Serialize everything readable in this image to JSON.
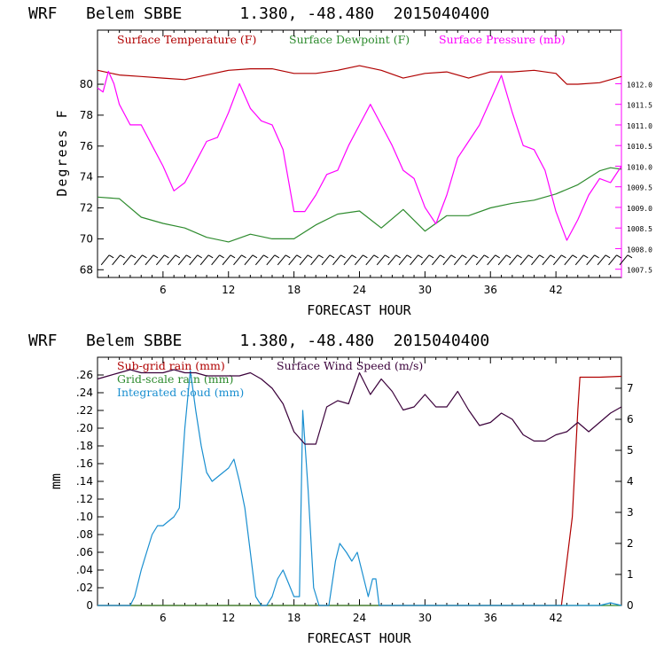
{
  "chart_data": [
    {
      "type": "line",
      "title": "WRF   Belem SBBE      1.380, -48.480  2015040400",
      "xlabel": "FORECAST HOUR",
      "ylabel": "Degrees F",
      "xlim": [
        0,
        48
      ],
      "ylim": [
        67.5,
        83.5
      ],
      "y2lim": [
        1007.3,
        1013.3
      ],
      "xticks": [
        6,
        12,
        18,
        24,
        30,
        36,
        42
      ],
      "yticks": [
        68,
        70,
        72,
        74,
        76,
        78,
        80
      ],
      "y2ticks": [
        1007.5,
        1008.0,
        1008.5,
        1009.0,
        1009.5,
        1010.0,
        1010.5,
        1011.0,
        1011.5,
        1012.0
      ],
      "xtick_labels": [
        "6",
        "12",
        "18",
        "24",
        "30",
        "36",
        "42"
      ],
      "ytick_labels": [
        "68",
        "70",
        "72",
        "74",
        "76",
        "78",
        "80"
      ],
      "y2tick_labels": [
        "1007.5",
        "1008.0",
        "1008.5",
        "1009.0",
        "1009.5",
        "1010.0",
        "1010.5",
        "1011.0",
        "1011.5",
        "1012.0"
      ],
      "legend": [
        {
          "label": "Surface Temperature (F)",
          "color": "#b00000"
        },
        {
          "label": "Surface Dewpoint (F)",
          "color": "#2e8b2e"
        },
        {
          "label": "Surface Pressure (mb)",
          "color": "#ff00ff"
        }
      ],
      "series": [
        {
          "name": "Surface Temperature (F)",
          "axis": "left",
          "color": "#b00000",
          "x": [
            0,
            2,
            4,
            6,
            8,
            10,
            12,
            14,
            16,
            18,
            20,
            22,
            24,
            26,
            28,
            30,
            32,
            34,
            36,
            38,
            40,
            42,
            43,
            44,
            46,
            48
          ],
          "y": [
            80.9,
            80.6,
            80.5,
            80.4,
            80.3,
            80.6,
            80.9,
            81.0,
            81.0,
            80.7,
            80.7,
            80.9,
            81.2,
            80.9,
            80.4,
            80.7,
            80.8,
            80.4,
            80.8,
            80.8,
            80.9,
            80.7,
            80.0,
            80.0,
            80.1,
            80.5
          ]
        },
        {
          "name": "Surface Dewpoint (F)",
          "axis": "left",
          "color": "#2e8b2e",
          "x": [
            0,
            2,
            4,
            6,
            8,
            10,
            12,
            14,
            16,
            18,
            20,
            22,
            24,
            26,
            28,
            30,
            32,
            34,
            36,
            38,
            40,
            42,
            44,
            46,
            47,
            48
          ],
          "y": [
            72.7,
            72.6,
            71.4,
            71.0,
            70.7,
            70.1,
            69.8,
            70.3,
            70.0,
            70.0,
            70.9,
            71.6,
            71.8,
            70.7,
            71.9,
            70.5,
            71.5,
            71.5,
            72.0,
            72.3,
            72.5,
            72.9,
            73.5,
            74.4,
            74.6,
            74.5
          ]
        },
        {
          "name": "Surface Pressure (mb)",
          "axis": "right",
          "color": "#ff00ff",
          "x": [
            0,
            0.5,
            1,
            1.5,
            2,
            3,
            4,
            5,
            6,
            7,
            8,
            9,
            10,
            11,
            12,
            13,
            14,
            15,
            16,
            17,
            18,
            19,
            20,
            21,
            22,
            23,
            24,
            25,
            26,
            27,
            28,
            29,
            30,
            31,
            32,
            33,
            34,
            35,
            36,
            37,
            38,
            39,
            40,
            41,
            42,
            43,
            44,
            45,
            46,
            47,
            48
          ],
          "y": [
            1011.9,
            1011.8,
            1012.3,
            1012.0,
            1011.5,
            1011.0,
            1011.0,
            1010.5,
            1010.0,
            1009.4,
            1009.6,
            1010.1,
            1010.6,
            1010.7,
            1011.3,
            1012.0,
            1011.4,
            1011.1,
            1011.0,
            1010.4,
            1008.9,
            1008.9,
            1009.3,
            1009.8,
            1009.9,
            1010.5,
            1011.0,
            1011.5,
            1011.0,
            1010.5,
            1009.9,
            1009.7,
            1009.0,
            1008.6,
            1009.3,
            1010.2,
            1010.6,
            1011.0,
            1011.6,
            1012.2,
            1011.3,
            1010.5,
            1010.4,
            1009.9,
            1008.9,
            1008.2,
            1008.7,
            1009.3,
            1009.7,
            1009.6,
            1010.0
          ]
        }
      ],
      "wind_barbs": {
        "count": 48,
        "from_x": 0.5,
        "to_x": 48
      }
    },
    {
      "type": "line",
      "title": "WRF   Belem SBBE      1.380, -48.480  2015040400",
      "xlabel": "FORECAST HOUR",
      "ylabel": "mm",
      "xlim": [
        0,
        48
      ],
      "ylim": [
        0,
        0.28
      ],
      "y2lim": [
        0,
        8
      ],
      "xticks": [
        6,
        12,
        18,
        24,
        30,
        36,
        42
      ],
      "xtick_labels": [
        "6",
        "12",
        "18",
        "24",
        "30",
        "36",
        "42"
      ],
      "yticks": [
        0,
        0.02,
        0.04,
        0.06,
        0.08,
        0.1,
        0.12,
        0.14,
        0.16,
        0.18,
        0.2,
        0.22,
        0.24,
        0.26
      ],
      "ytick_labels": [
        "0",
        ".02",
        ".04",
        ".06",
        ".08",
        ".10",
        ".12",
        ".14",
        ".16",
        ".18",
        ".20",
        ".22",
        ".24",
        ".26"
      ],
      "y2ticks": [
        0,
        1,
        2,
        3,
        4,
        5,
        6,
        7
      ],
      "y2tick_labels": [
        "0",
        "1",
        "2",
        "3",
        "4",
        "5",
        "6",
        "7"
      ],
      "legend": [
        {
          "label": "Sub-grid rain (mm)",
          "color": "#b00000"
        },
        {
          "label": "Surface Wind Speed (m/s)",
          "color": "#3a003a"
        },
        {
          "label": "Grid-scale rain (mm)",
          "color": "#2e8b2e"
        },
        {
          "label": "Integrated cloud (mm)",
          "color": "#1a8fd0"
        }
      ],
      "series": [
        {
          "name": "Sub-grid rain (mm)",
          "axis": "left",
          "color": "#b00000",
          "x": [
            0,
            42.5,
            43.5,
            44,
            44.2,
            46,
            48
          ],
          "y": [
            0,
            0,
            0.1,
            0.22,
            0.2575,
            0.2575,
            0.2585
          ]
        },
        {
          "name": "Grid-scale rain (mm)",
          "axis": "left",
          "color": "#2e8b2e",
          "x": [
            0,
            48
          ],
          "y": [
            0,
            0
          ]
        },
        {
          "name": "Integrated cloud (mm)",
          "axis": "left",
          "color": "#1a8fd0",
          "x": [
            0,
            3,
            3.4,
            4,
            4.5,
            5,
            5.5,
            6,
            6.5,
            7,
            7.5,
            8,
            8.5,
            9,
            9.5,
            10,
            10.5,
            11,
            11.5,
            12,
            12.5,
            13,
            13.5,
            14,
            14.5,
            15,
            15.5,
            16,
            16.5,
            17,
            17.5,
            18,
            18.5,
            18.8,
            19.3,
            19.8,
            20.3,
            20.8,
            21.2,
            21.8,
            22.2,
            22.8,
            23.3,
            23.8,
            24.3,
            24.8,
            25.2,
            25.5,
            25.8,
            26,
            46,
            47,
            48
          ],
          "y": [
            0,
            0,
            0.01,
            0.04,
            0.06,
            0.08,
            0.09,
            0.09,
            0.095,
            0.1,
            0.11,
            0.2,
            0.265,
            0.22,
            0.18,
            0.15,
            0.14,
            0.145,
            0.15,
            0.155,
            0.165,
            0.14,
            0.11,
            0.06,
            0.01,
            0,
            0,
            0.01,
            0.03,
            0.04,
            0.025,
            0.01,
            0.01,
            0.22,
            0.13,
            0.02,
            0,
            0,
            0,
            0.05,
            0.07,
            0.06,
            0.05,
            0.06,
            0.035,
            0.01,
            0.03,
            0.03,
            0,
            0,
            0,
            0.003,
            0
          ]
        },
        {
          "name": "Surface Wind Speed (m/s)",
          "axis": "right",
          "color": "#3a003a",
          "x": [
            0,
            1,
            2,
            3,
            4,
            5,
            6,
            7,
            8,
            9,
            10,
            11,
            12,
            13,
            14,
            15,
            16,
            17,
            18,
            19,
            20,
            21,
            22,
            23,
            24,
            25,
            26,
            27,
            28,
            29,
            30,
            31,
            32,
            33,
            34,
            35,
            36,
            37,
            38,
            39,
            40,
            41,
            42,
            43,
            44,
            45,
            46,
            47,
            48
          ],
          "y": [
            7.3,
            7.4,
            7.5,
            7.6,
            7.5,
            7.5,
            7.5,
            7.6,
            7.5,
            7.5,
            7.4,
            7.4,
            7.4,
            7.4,
            7.5,
            7.3,
            7.0,
            6.5,
            5.6,
            5.2,
            5.2,
            6.4,
            6.6,
            6.5,
            7.5,
            6.8,
            7.3,
            6.9,
            6.3,
            6.4,
            6.8,
            6.4,
            6.4,
            6.9,
            6.3,
            5.8,
            5.9,
            6.2,
            6.0,
            5.5,
            5.3,
            5.3,
            5.5,
            5.6,
            5.9,
            5.6,
            5.9,
            6.2,
            6.4
          ]
        }
      ]
    }
  ]
}
